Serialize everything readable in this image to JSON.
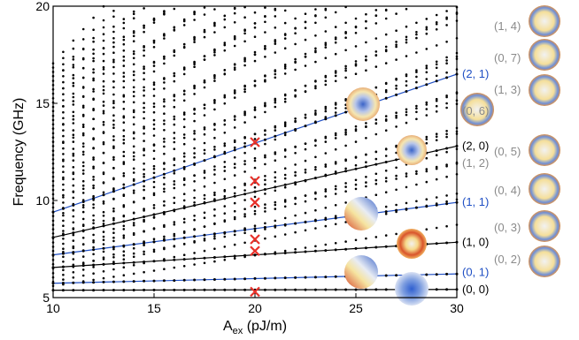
{
  "chart_data": {
    "type": "scatter",
    "title": "",
    "xlabel_base": "A",
    "xlabel_sub": "ex",
    "xlabel_unit": " (pJ/m)",
    "ylabel": "Frequency (GHz)",
    "xlim": [
      10,
      30
    ],
    "ylim": [
      5,
      20
    ],
    "xticks": [
      10,
      15,
      20,
      25,
      30
    ],
    "yticks": [
      5,
      10,
      15,
      20
    ],
    "highlight_color": "#1f4fc4",
    "marker_color": "#e8312a",
    "fitted_modes": [
      {
        "label": "(0, 0)",
        "color": "#000000",
        "points": [
          [
            10,
            5.38
          ],
          [
            30,
            5.42
          ]
        ]
      },
      {
        "label": "(0, 1)",
        "color": "#1f4fc4",
        "points": [
          [
            10,
            5.74
          ],
          [
            30,
            6.22
          ]
        ]
      },
      {
        "label": "(1, 0)",
        "color": "#000000",
        "points": [
          [
            10,
            6.55
          ],
          [
            30,
            7.85
          ]
        ]
      },
      {
        "label": "(1, 1)",
        "color": "#1f4fc4",
        "points": [
          [
            10,
            7.2
          ],
          [
            30,
            9.9
          ]
        ]
      },
      {
        "label": "(2, 0)",
        "color": "#000000",
        "points": [
          [
            10,
            8.1
          ],
          [
            30,
            12.8
          ]
        ]
      },
      {
        "label": "(2, 1)",
        "color": "#1f4fc4",
        "points": [
          [
            10,
            9.4
          ],
          [
            30,
            16.5
          ]
        ]
      }
    ],
    "marked_points": {
      "x": 20,
      "y": [
        5.3,
        7.4,
        8.0,
        9.9,
        11.0,
        13.0
      ]
    },
    "background_mode_slopes": [
      0.45,
      0.55,
      0.65,
      0.75,
      0.85,
      0.95,
      1.05,
      1.15,
      1.25,
      1.35,
      1.45,
      1.55,
      1.65
    ],
    "right_labels": [
      {
        "label": "(2, 1)",
        "color": "#1f4fc4",
        "y": 16.5
      },
      {
        "label": "(2, 0)",
        "color": "#000000",
        "y": 12.8
      },
      {
        "label": "(1, 2)",
        "color": "#8a8a8a",
        "y": 11.9
      },
      {
        "label": "(1, 1)",
        "color": "#1f4fc4",
        "y": 9.9
      },
      {
        "label": "(1, 0)",
        "color": "#000000",
        "y": 7.85
      },
      {
        "label": "(0, 1)",
        "color": "#1f4fc4",
        "y": 6.3
      },
      {
        "label": "(0, 0)",
        "color": "#000000",
        "y": 5.42
      }
    ],
    "side_mode_labels": [
      {
        "label": "(1, 4)",
        "color": "#8a8a8a"
      },
      {
        "label": "(0, 7)",
        "color": "#8a8a8a"
      },
      {
        "label": "(1, 3)",
        "color": "#8a8a8a"
      },
      {
        "label": "(0, 6)",
        "color": "#8a8a8a"
      },
      {
        "label": "(0, 5)",
        "color": "#8a8a8a"
      },
      {
        "label": "(0, 4)",
        "color": "#8a8a8a"
      },
      {
        "label": "(0, 3)",
        "color": "#8a8a8a"
      },
      {
        "label": "(0, 2)",
        "color": "#8a8a8a"
      }
    ]
  }
}
